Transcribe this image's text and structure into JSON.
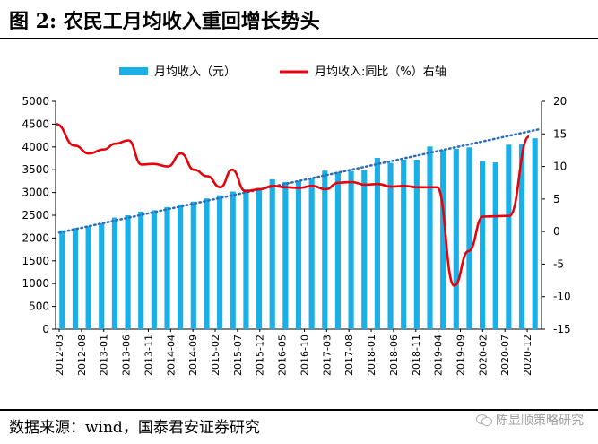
{
  "figure": {
    "title": "图 2: 农民工月均收入重回增长势头",
    "source": "数据来源：wind，国泰君安证券研究",
    "watermark": "陈显顺策略研究"
  },
  "chart_data": {
    "type": "bar",
    "legend": [
      "月均收入（元）",
      "月均收入:同比（%）右轴"
    ],
    "legend_position": "top",
    "y_left": {
      "min": 0,
      "max": 5000,
      "step": 500
    },
    "y_right": {
      "min": -15,
      "max": 20,
      "step": 5
    },
    "x_tick_labels": [
      "2012-03",
      "2012-08",
      "2013-01",
      "2013-06",
      "2013-11",
      "2014-04",
      "2014-09",
      "2015-02",
      "2015-07",
      "2015-12",
      "2016-05",
      "2016-10",
      "2017-03",
      "2017-08",
      "2018-01",
      "2018-06",
      "2018-11",
      "2019-04",
      "2019-09",
      "2020-02",
      "2020-07",
      "2020-12"
    ],
    "bar_series": {
      "name": "月均收入（元）",
      "color": "#1AAFE6",
      "axis": "left",
      "categories": [
        "2012-03",
        "2012-06",
        "2012-09",
        "2012-12",
        "2013-03",
        "2013-06",
        "2013-09",
        "2013-12",
        "2014-03",
        "2014-06",
        "2014-09",
        "2014-12",
        "2015-03",
        "2015-06",
        "2015-09",
        "2015-12",
        "2016-03",
        "2016-06",
        "2016-09",
        "2016-12",
        "2017-03",
        "2017-06",
        "2017-09",
        "2017-12",
        "2018-03",
        "2018-06",
        "2018-09",
        "2018-12",
        "2019-03",
        "2019-06",
        "2019-09",
        "2019-12",
        "2020-03",
        "2020-06",
        "2020-09",
        "2020-12",
        "2021-03"
      ],
      "values": [
        2170,
        2220,
        2260,
        2320,
        2450,
        2500,
        2580,
        2610,
        2680,
        2740,
        2800,
        2870,
        2940,
        3020,
        3070,
        3100,
        3290,
        3230,
        3250,
        3300,
        3480,
        3450,
        3470,
        3490,
        3760,
        3650,
        3720,
        3720,
        4010,
        3930,
        3960,
        3990,
        3690,
        3660,
        4050,
        4070,
        4190
      ]
    },
    "line_series": {
      "name": "月均收入:同比（%）右轴",
      "color": "#E8000B",
      "axis": "right",
      "x_index": [
        0,
        1,
        2,
        3,
        4,
        5,
        6,
        7,
        8,
        9,
        10,
        11,
        12,
        13,
        14,
        15,
        16,
        17,
        18,
        19,
        20,
        21,
        22,
        23,
        24,
        25,
        26,
        27,
        28,
        29,
        30,
        31,
        32,
        33,
        34,
        35,
        36
      ],
      "values": [
        16.5,
        13.2,
        12.0,
        12.6,
        13.5,
        14.0,
        10.3,
        10.4,
        10.0,
        12.0,
        9.5,
        8.5,
        6.8,
        9.5,
        6.2,
        6.5,
        7.0,
        6.8,
        6.7,
        7.0,
        6.5,
        7.5,
        7.6,
        7.2,
        7.3,
        6.9,
        7.0,
        6.8,
        6.8,
        -8.3,
        -3.0,
        2.3,
        2.4,
        14.6
      ],
      "x_positions": [
        0,
        1.4,
        2.5,
        3.6,
        4.5,
        5.5,
        6.5,
        7.4,
        8.5,
        9.5,
        10.5,
        11.5,
        12.5,
        13.4,
        14.4,
        15.5,
        16.5,
        17.5,
        18.5,
        19.5,
        20.5,
        21.5,
        22.5,
        23.5,
        24.5,
        25.5,
        26.5,
        27.5,
        29.0,
        30.3,
        31.4,
        32.5,
        34.5,
        36.0
      ]
    },
    "trendline": {
      "style": "dotted",
      "color": "#2E6DB5",
      "from_value": 2120,
      "to_value": 4390
    }
  }
}
